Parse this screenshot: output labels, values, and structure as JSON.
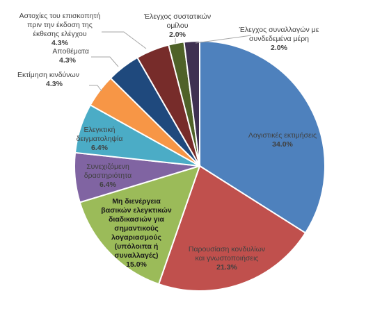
{
  "chart_data": {
    "type": "pie",
    "title": "",
    "slices": [
      {
        "label": "Λογιστικές εκτιμήσεις",
        "value": 34.0,
        "value_text": "34.0%",
        "color": "#4E81BD"
      },
      {
        "label": "Παρουσίαση κονδυλίων και γνωστοποιήσεις",
        "value": 21.3,
        "value_text": "21.3%",
        "color": "#C0504D"
      },
      {
        "label": "Μη διενέργεια βασικών ελεγκτικών διαδικασιών για σημαντικούς λογαριασμούς (υπόλοιπα ή συναλλαγές)",
        "value": 15.0,
        "value_text": "15.0%",
        "color": "#9BBB59"
      },
      {
        "label": "Συνεχιζόμενη δραστηριότητα",
        "value": 6.4,
        "value_text": "6.4%",
        "color": "#8064A2"
      },
      {
        "label": "Ελεγκτική δειγματοληψία",
        "value": 6.4,
        "value_text": "6.4%",
        "color": "#4BACC6"
      },
      {
        "label": "Εκτίμηση κινδύνων",
        "value": 4.3,
        "value_text": "4.3%",
        "color": "#F79646"
      },
      {
        "label": "Αποθέματα",
        "value": 4.3,
        "value_text": "4.3%",
        "color": "#1F497D"
      },
      {
        "label": "Αστοχίες του επισκοπητή πριν την έκδοση της έκθεσης ελέγχου",
        "value": 4.3,
        "value_text": "4.3%",
        "color": "#772C2A"
      },
      {
        "label": "Έλεγχος συστατικών ομίλου",
        "value": 2.0,
        "value_text": "2.0%",
        "color": "#4F6228"
      },
      {
        "label": "Έλεγχος συναλλαγών με συνδεδεμένα μέρη",
        "value": 2.0,
        "value_text": "2.0%",
        "color": "#3F3151"
      }
    ],
    "legend": "none",
    "data_labels": "category and percentage"
  }
}
